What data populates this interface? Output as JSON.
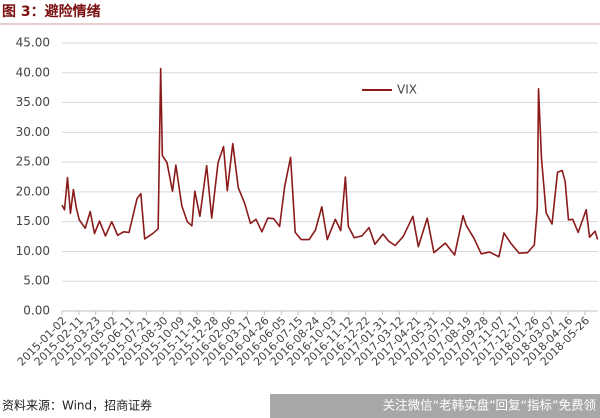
{
  "title": "图 3：避险情绪",
  "source": "资料来源：Wind，招商证券",
  "watermark": "关注微信“老韩实盘”回复“指标”免费领",
  "chart_data": {
    "type": "line",
    "x": [
      "2015-01-02",
      "2015-01-08",
      "2015-01-15",
      "2015-01-22",
      "2015-01-29",
      "2015-02-05",
      "2015-02-12",
      "2015-02-26",
      "2015-03-10",
      "2015-03-20",
      "2015-04-01",
      "2015-04-15",
      "2015-04-30",
      "2015-05-14",
      "2015-05-28",
      "2015-06-10",
      "2015-06-29",
      "2015-07-08",
      "2015-07-17",
      "2015-08-05",
      "2015-08-18",
      "2015-08-24",
      "2015-08-28",
      "2015-09-08",
      "2015-09-21",
      "2015-09-29",
      "2015-10-13",
      "2015-10-26",
      "2015-11-06",
      "2015-11-13",
      "2015-11-25",
      "2015-12-11",
      "2015-12-23",
      "2016-01-07",
      "2016-01-20",
      "2016-01-29",
      "2016-02-11",
      "2016-02-24",
      "2016-03-10",
      "2016-03-24",
      "2016-04-06",
      "2016-04-20",
      "2016-05-04",
      "2016-05-18",
      "2016-06-01",
      "2016-06-13",
      "2016-06-27",
      "2016-07-08",
      "2016-07-22",
      "2016-08-10",
      "2016-08-25",
      "2016-09-09",
      "2016-09-22",
      "2016-10-11",
      "2016-10-24",
      "2016-11-04",
      "2016-11-11",
      "2016-11-25",
      "2016-12-13",
      "2016-12-30",
      "2017-01-13",
      "2017-02-01",
      "2017-02-15",
      "2017-03-02",
      "2017-03-21",
      "2017-04-13",
      "2017-04-26",
      "2017-05-17",
      "2017-06-02",
      "2017-06-29",
      "2017-07-21",
      "2017-08-10",
      "2017-08-18",
      "2017-09-05",
      "2017-09-22",
      "2017-10-12",
      "2017-11-03",
      "2017-11-15",
      "2017-12-01",
      "2017-12-21",
      "2018-01-10",
      "2018-01-26",
      "2018-02-02",
      "2018-02-05",
      "2018-02-12",
      "2018-02-23",
      "2018-03-09",
      "2018-03-22",
      "2018-04-02",
      "2018-04-09",
      "2018-04-17",
      "2018-04-27",
      "2018-05-10",
      "2018-05-29",
      "2018-06-06",
      "2018-06-19",
      "2018-06-25"
    ],
    "series": [
      {
        "name": "VIX",
        "color": "#8b1a1a",
        "values": [
          17.8,
          17.0,
          22.4,
          16.4,
          20.4,
          17.3,
          15.3,
          13.9,
          16.7,
          13.0,
          15.1,
          12.6,
          15.0,
          12.7,
          13.3,
          13.2,
          18.9,
          19.7,
          12.1,
          13.0,
          13.8,
          40.7,
          26.1,
          24.9,
          20.1,
          24.5,
          17.7,
          15.0,
          14.3,
          20.1,
          15.9,
          24.4,
          15.6,
          24.9,
          27.6,
          20.2,
          28.1,
          20.7,
          18.1,
          14.7,
          15.4,
          13.3,
          15.6,
          15.5,
          14.2,
          20.9,
          25.8,
          13.2,
          12.0,
          12.0,
          13.6,
          17.5,
          12.0,
          15.4,
          13.5,
          22.5,
          14.2,
          12.3,
          12.6,
          14.0,
          11.2,
          12.9,
          11.7,
          11.0,
          12.5,
          15.9,
          10.8,
          15.6,
          9.8,
          11.4,
          9.4,
          16.0,
          14.3,
          12.2,
          9.6,
          9.9,
          9.1,
          13.1,
          11.4,
          9.7,
          9.8,
          11.1,
          17.3,
          37.3,
          25.6,
          16.5,
          14.6,
          23.3,
          23.6,
          21.8,
          15.3,
          15.4,
          13.2,
          17.0,
          12.4,
          13.4,
          12.0
        ]
      }
    ],
    "xlim": [
      "2015-01-02",
      "2018-06-26"
    ],
    "xticks": [
      "2015-01-02",
      "2015-02-11",
      "2015-03-23",
      "2015-05-02",
      "2015-06-11",
      "2015-07-21",
      "2015-08-30",
      "2015-10-09",
      "2015-11-18",
      "2015-12-28",
      "2016-02-06",
      "2016-03-17",
      "2016-04-26",
      "2016-06-05",
      "2016-07-15",
      "2016-08-24",
      "2016-10-03",
      "2016-11-12",
      "2016-12-22",
      "2017-01-31",
      "2017-03-12",
      "2017-04-21",
      "2017-05-31",
      "2017-07-10",
      "2017-08-19",
      "2017-09-28",
      "2017-11-07",
      "2017-12-17",
      "2018-01-26",
      "2018-03-07",
      "2018-04-16",
      "2018-05-26"
    ],
    "ylim": [
      0,
      45
    ],
    "yticks": [
      {
        "value": 0,
        "label": "0.00"
      },
      {
        "value": 5,
        "label": "5.00"
      },
      {
        "value": 10,
        "label": "10.00"
      },
      {
        "value": 15,
        "label": "15.00"
      },
      {
        "value": 20,
        "label": "20.00"
      },
      {
        "value": 25,
        "label": "25.00"
      },
      {
        "value": 30,
        "label": "30.00"
      },
      {
        "value": 35,
        "label": "35.00"
      },
      {
        "value": 40,
        "label": "40.00"
      },
      {
        "value": 45,
        "label": "45.00"
      }
    ],
    "grid": true
  }
}
